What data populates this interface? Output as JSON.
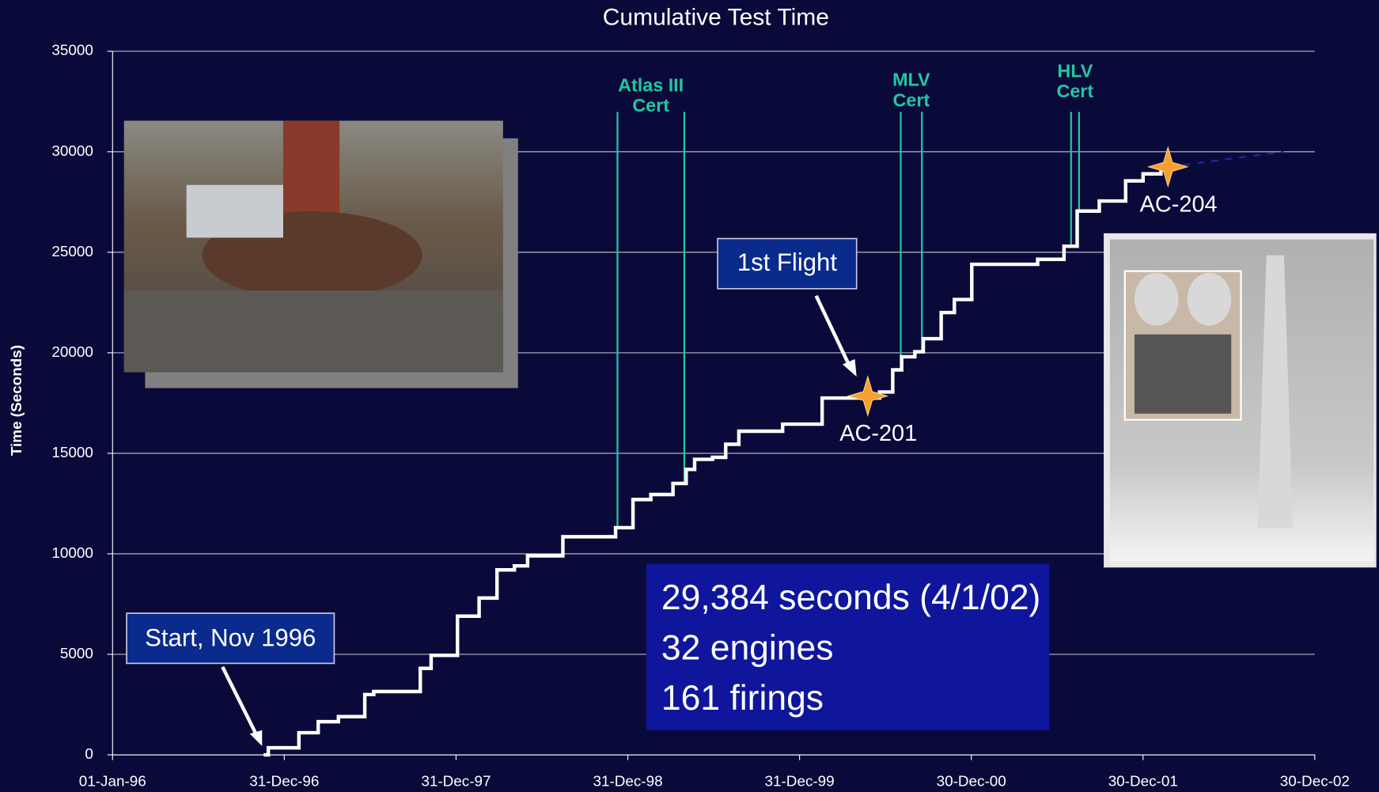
{
  "chart_data": {
    "type": "step-line",
    "title": "Cumulative Test Time",
    "y_label": "Time (Seconds)",
    "xlim": [
      0,
      2555
    ],
    "ylim": [
      0,
      35000
    ],
    "xticks": [
      {
        "value": 0,
        "label": "01-Jan-96"
      },
      {
        "value": 365,
        "label": "31-Dec-96"
      },
      {
        "value": 730,
        "label": "31-Dec-97"
      },
      {
        "value": 1095,
        "label": "31-Dec-98"
      },
      {
        "value": 1460,
        "label": "31-Dec-99"
      },
      {
        "value": 1825,
        "label": "30-Dec-00"
      },
      {
        "value": 2190,
        "label": "30-Dec-01"
      },
      {
        "value": 2555,
        "label": "30-Dec-02"
      }
    ],
    "yticks": [
      0,
      5000,
      10000,
      15000,
      20000,
      25000,
      30000,
      35000
    ],
    "grid": true,
    "series": [
      {
        "color": "#ffffff",
        "dashed": false,
        "x": [
          321,
          331,
          368,
          396,
          424,
          437,
          480,
          508,
          536,
          555,
          620,
          654,
          677,
          695,
          733,
          761,
          779,
          817,
          854,
          882,
          929,
          957,
          1032,
          1069,
          1106,
          1144,
          1191,
          1219,
          1237,
          1275,
          1303,
          1331,
          1396,
          1424,
          1471,
          1508,
          1602,
          1630,
          1658,
          1677,
          1705,
          1723,
          1761,
          1789,
          1826,
          1938,
          1966,
          1994,
          2022,
          2050,
          2097,
          2134,
          2153,
          2190,
          2228,
          2246
        ],
        "values": [
          0,
          350,
          350,
          1100,
          1100,
          1650,
          1900,
          1900,
          3000,
          3150,
          3150,
          4300,
          4950,
          4950,
          6900,
          6900,
          7800,
          9200,
          9400,
          9900,
          9900,
          10850,
          10850,
          11300,
          12700,
          12950,
          13500,
          14200,
          14700,
          14800,
          15450,
          16100,
          16100,
          16450,
          16450,
          17750,
          17750,
          18050,
          19150,
          19800,
          20050,
          20700,
          22000,
          22650,
          24400,
          24400,
          24650,
          24650,
          25300,
          27050,
          27550,
          27550,
          28550,
          28900,
          29250,
          29250
        ]
      },
      {
        "color": "#1a2a9a",
        "dashed": true,
        "x": [
          2246,
          2489
        ],
        "values": [
          29250,
          30000
        ]
      }
    ],
    "cert_lines": [
      {
        "labels": [
          "Atlas III",
          "Cert"
        ],
        "x": [
          1073,
          1215
        ]
      },
      {
        "labels": [
          "MLV",
          "Cert"
        ],
        "x": [
          1675,
          1720
        ]
      },
      {
        "labels": [
          "HLV",
          "Cert"
        ],
        "x": [
          2037,
          2054
        ]
      }
    ],
    "annotations": [
      {
        "label": "AC-201",
        "x": 1605,
        "y": 17850
      },
      {
        "label": "AC-204",
        "x": 2243,
        "y": 29250
      }
    ],
    "callouts": [
      "1st Flight",
      "Start, Nov 1996"
    ],
    "info_box": [
      "29,384 seconds (4/1/02)",
      "32 engines",
      "161 firings"
    ]
  }
}
